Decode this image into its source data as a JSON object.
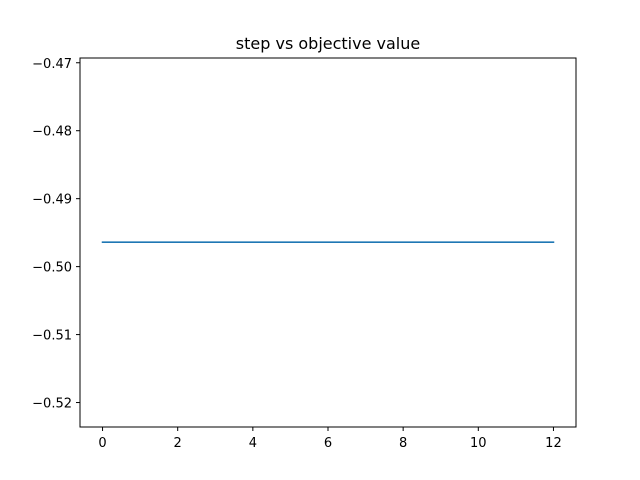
{
  "chart_data": {
    "type": "line",
    "title": "step vs objective value",
    "xlabel": "",
    "ylabel": "",
    "xlim": [
      -0.6,
      12.6
    ],
    "ylim": [
      -0.5236,
      -0.4693
    ],
    "xticks": [
      0,
      2,
      4,
      6,
      8,
      10,
      12
    ],
    "xtick_labels": [
      "0",
      "2",
      "4",
      "6",
      "8",
      "10",
      "12"
    ],
    "yticks": [
      -0.47,
      -0.48,
      -0.49,
      -0.5,
      -0.51,
      -0.52
    ],
    "ytick_labels": [
      "−0.47",
      "−0.48",
      "−0.49",
      "−0.50",
      "−0.51",
      "−0.52"
    ],
    "grid": false,
    "series": [
      {
        "color": "#1f77b4",
        "x": [
          0,
          1,
          2,
          3,
          4,
          5,
          6,
          7,
          8,
          9,
          10,
          11,
          12
        ],
        "y": [
          -0.4964,
          -0.4964,
          -0.4964,
          -0.4964,
          -0.4964,
          -0.4964,
          -0.4964,
          -0.4964,
          -0.4964,
          -0.4964,
          -0.4964,
          -0.4964,
          -0.4964
        ]
      }
    ]
  }
}
